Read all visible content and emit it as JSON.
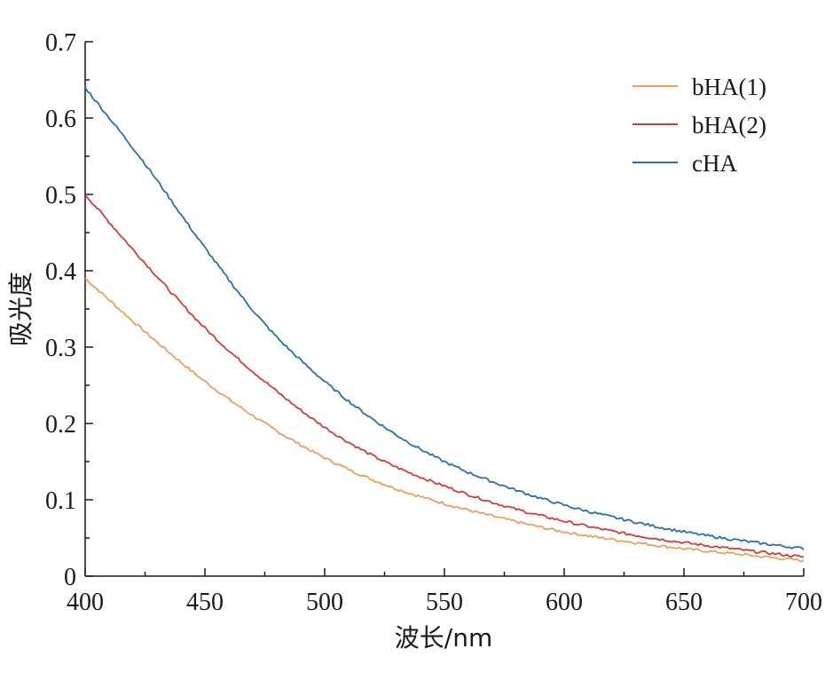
{
  "chart_data": {
    "type": "line",
    "title": "",
    "xlabel": "波长/nm",
    "ylabel": "吸光度",
    "xlim": [
      400,
      700
    ],
    "ylim": [
      0,
      0.7
    ],
    "x_ticks": [
      400,
      450,
      500,
      550,
      600,
      650,
      700
    ],
    "x_tick_labels": [
      "400",
      "450",
      "500",
      "550",
      "600",
      "650",
      "700"
    ],
    "y_ticks": [
      0,
      0.1,
      0.2,
      0.3,
      0.4,
      0.5,
      0.6,
      0.7
    ],
    "y_tick_labels": [
      "0",
      "0.1",
      "0.2",
      "0.3",
      "0.4",
      "0.5",
      "0.6",
      "0.7"
    ],
    "grid": false,
    "legend_position": "top-right",
    "x": [
      400,
      425,
      450,
      475,
      500,
      525,
      550,
      575,
      600,
      625,
      650,
      675,
      700
    ],
    "series": [
      {
        "name": "bHA(1)",
        "color": "#E8A060",
        "values": [
          0.39,
          0.32,
          0.255,
          0.2,
          0.155,
          0.12,
          0.095,
          0.075,
          0.058,
          0.046,
          0.036,
          0.028,
          0.02
        ]
      },
      {
        "name": "bHA(2)",
        "color": "#D63A3A",
        "values": [
          0.5,
          0.41,
          0.325,
          0.255,
          0.195,
          0.15,
          0.118,
          0.092,
          0.072,
          0.056,
          0.044,
          0.034,
          0.025
        ]
      },
      {
        "name": "cHA",
        "color": "#2E6EA6",
        "values": [
          0.64,
          0.54,
          0.43,
          0.33,
          0.255,
          0.195,
          0.15,
          0.118,
          0.093,
          0.074,
          0.058,
          0.046,
          0.036
        ]
      }
    ]
  }
}
